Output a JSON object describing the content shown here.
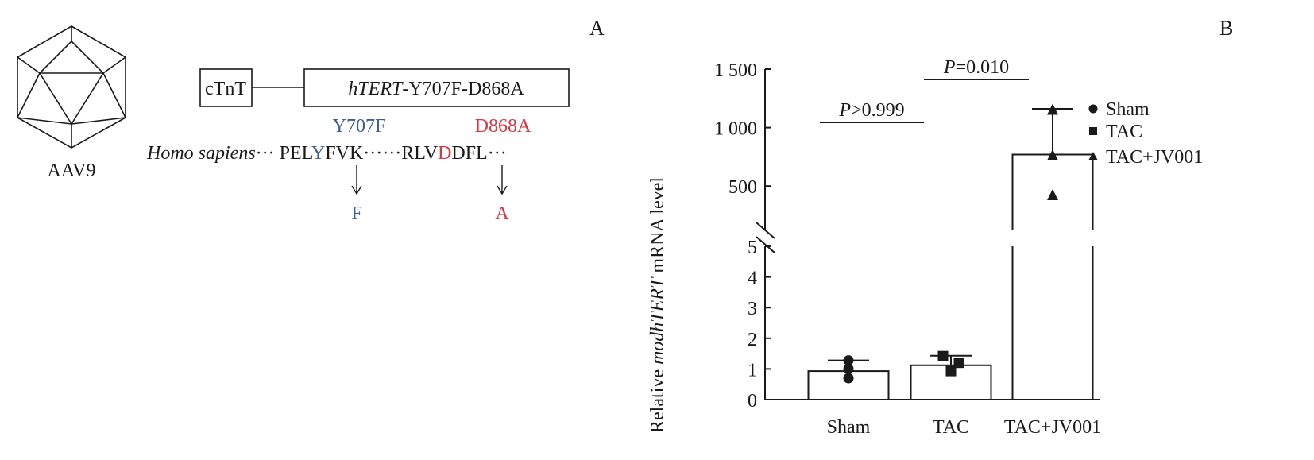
{
  "panel_a": {
    "label": "A",
    "capsid_label": "AAV9",
    "promoter": "cTnT",
    "gene_italic": "hTERT",
    "gene_suffix": "-Y707F-D868A",
    "mutation1": "Y707F",
    "mutation2": "D868A",
    "species": "Homo sapiens",
    "seq_dots1": "··· ",
    "seq1_pre": "PEL",
    "seq1_mut": "Y",
    "seq1_post": "FVK",
    "seq_dots2": "······",
    "seq2_pre": "RLV",
    "seq2_mut": "D",
    "seq2_post": "DFL",
    "seq_dots3": "···",
    "sub1": "F",
    "sub2": "A",
    "colors": {
      "mutation1": "#3d5a99",
      "mutation2": "#d8373f"
    }
  },
  "panel_b": {
    "label": "B"
  },
  "chart_data": {
    "type": "bar",
    "categories": [
      "Sham",
      "TAC",
      "TAC+JV001"
    ],
    "values": [
      0.93,
      1.12,
      770
    ],
    "error_upper": [
      1.28,
      1.43,
      1160
    ],
    "points": [
      [
        1.28,
        1.0,
        0.7
      ],
      [
        1.42,
        0.93,
        1.2
      ],
      [
        1150,
        760,
        420
      ]
    ],
    "markers": [
      "circle",
      "square",
      "triangle"
    ],
    "ylabel_pre": "Relative ",
    "ylabel_italic": "modhTERT",
    "ylabel_post": " mRNA level",
    "y_lower": {
      "range": [
        0,
        5
      ],
      "ticks": [
        "0",
        "1",
        "2",
        "3",
        "4",
        "5"
      ]
    },
    "y_upper": {
      "range": [
        120,
        1500
      ],
      "ticks": [
        {
          "v": 500,
          "label": "500"
        },
        {
          "v": 1000,
          "label": "1 000"
        },
        {
          "v": 1500,
          "label": "1 500"
        }
      ]
    },
    "axis_break": true,
    "grid": false,
    "legend": {
      "placement": "right",
      "entries": [
        "Sham",
        "TAC",
        "TAC+JV001"
      ]
    },
    "annotations": [
      {
        "p": "P",
        "text": ">0.999",
        "between": [
          "Sham",
          "TAC"
        ]
      },
      {
        "p": "P",
        "text": "=0.010",
        "between": [
          "TAC",
          "TAC+JV001"
        ]
      }
    ]
  }
}
